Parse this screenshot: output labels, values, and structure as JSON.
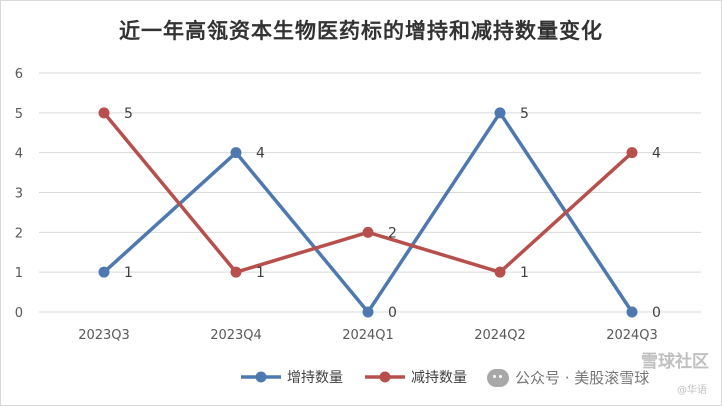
{
  "chart_data": {
    "type": "line",
    "title": "近一年高瓴资本生物医药标的增持和减持数量变化",
    "categories": [
      "2023Q3",
      "2023Q4",
      "2024Q1",
      "2024Q2",
      "2024Q3"
    ],
    "series": [
      {
        "name": "增持数量",
        "values": [
          1,
          4,
          0,
          5,
          0
        ],
        "color": "#4e79b0"
      },
      {
        "name": "减持数量",
        "values": [
          5,
          1,
          2,
          1,
          4
        ],
        "color": "#b7504c"
      }
    ],
    "ylim": [
      0,
      6
    ],
    "yticks": [
      0,
      1,
      2,
      3,
      4,
      5,
      6
    ],
    "grid": true,
    "legend": "bottom",
    "data_labels": true
  },
  "watermarks": {
    "wechat": "公众号 · 美股滚雪球",
    "corner": "雪球社区",
    "corner_sub": "@华语"
  }
}
